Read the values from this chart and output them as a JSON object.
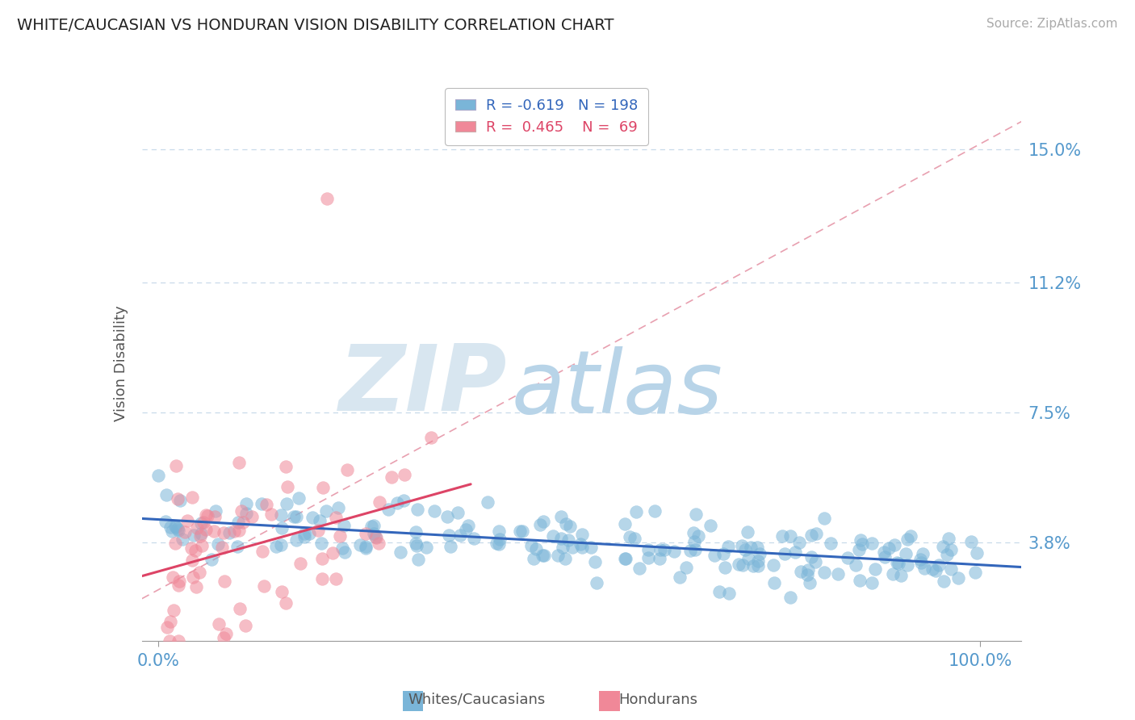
{
  "title": "WHITE/CAUCASIAN VS HONDURAN VISION DISABILITY CORRELATION CHART",
  "source": "Source: ZipAtlas.com",
  "ylabel": "Vision Disability",
  "legend_blue_r": "-0.619",
  "legend_blue_n": "198",
  "legend_pink_r": "0.465",
  "legend_pink_n": "69",
  "legend_label_blue": "Whites/Caucasians",
  "legend_label_pink": "Hondurans",
  "blue_color": "#7ab5d8",
  "pink_color": "#f08898",
  "trend_blue_color": "#3366bb",
  "trend_pink_color": "#dd4466",
  "diag_line_color": "#e8a0b0",
  "title_color": "#222222",
  "axis_label_color": "#5599cc",
  "grid_color": "#c8daea",
  "watermark_zip_color": "#d8e6f0",
  "watermark_atlas_color": "#b8d4e8",
  "ytick_labels": [
    "3.8%",
    "7.5%",
    "11.2%",
    "15.0%"
  ],
  "ytick_values": [
    0.038,
    0.075,
    0.112,
    0.15
  ],
  "xtick_labels": [
    "0.0%",
    "100.0%"
  ],
  "ylim": [
    0.01,
    0.168
  ],
  "xlim": [
    -0.02,
    1.05
  ]
}
